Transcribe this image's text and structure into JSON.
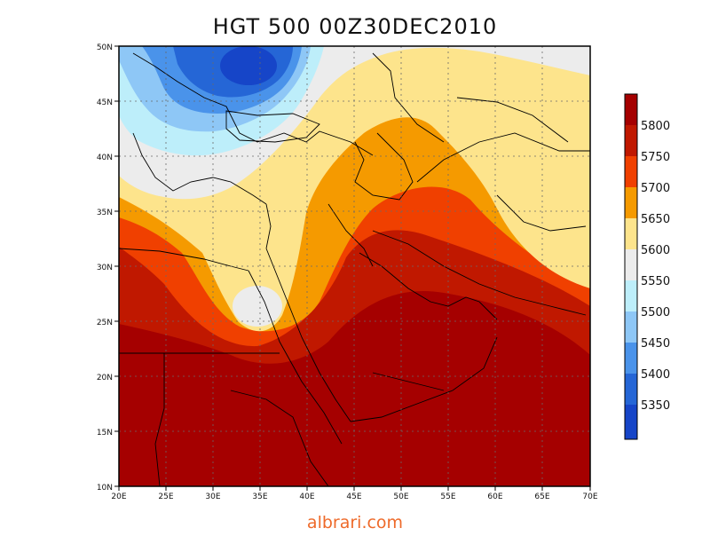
{
  "title": "HGT 500 00Z30DEC2010",
  "watermark": "albrari.com",
  "map": {
    "lon_ticks": [
      "20E",
      "25E",
      "30E",
      "35E",
      "40E",
      "45E",
      "50E",
      "55E",
      "60E",
      "65E",
      "70E"
    ],
    "lat_ticks": [
      "50N",
      "45N",
      "40N",
      "35N",
      "30N",
      "25N",
      "20N",
      "15N",
      "10N"
    ],
    "extent": {
      "lon_min": 20,
      "lon_max": 70,
      "lat_min": 10,
      "lat_max": 50
    },
    "gridlines": true
  },
  "colorbar": {
    "labels": [
      "5800",
      "5750",
      "5700",
      "5650",
      "5600",
      "5550",
      "5500",
      "5450",
      "5400",
      "5350"
    ],
    "colors": [
      "#a50000",
      "#c01800",
      "#f04000",
      "#f59a00",
      "#fde48c",
      "#ececec",
      "#bdeefa",
      "#8ec7f6",
      "#4a93ea",
      "#2566d6",
      "#1645c8"
    ]
  },
  "chart_data": {
    "type": "heatmap",
    "title": "HGT 500 00Z30DEC2010",
    "variable": "HGT 500",
    "levels": [
      5350,
      5400,
      5450,
      5500,
      5550,
      5600,
      5650,
      5700,
      5750,
      5800
    ],
    "xlim": [
      20,
      70
    ],
    "ylim": [
      10,
      50
    ]
  }
}
